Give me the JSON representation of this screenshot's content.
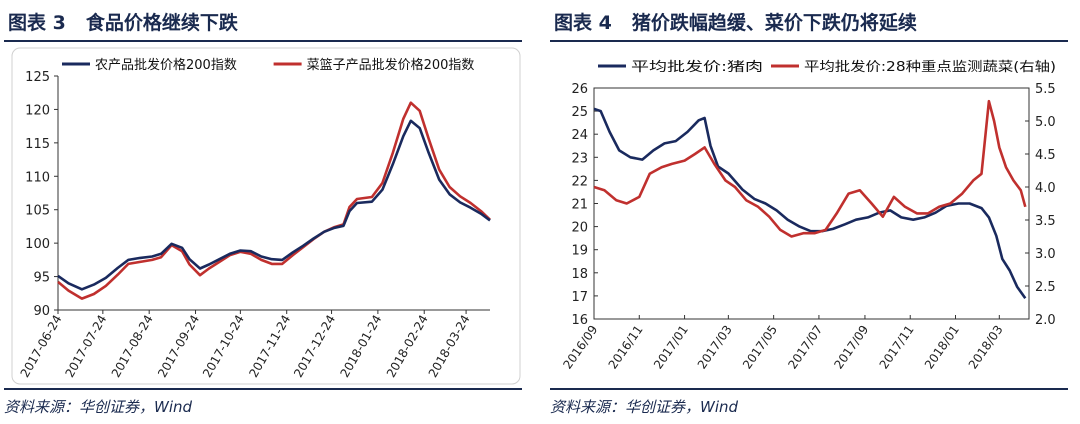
{
  "left": {
    "title_num": "图表 3",
    "title_text": "食品价格继续下跌",
    "source": "资料来源：华创证券，Wind",
    "chart_data": {
      "type": "line",
      "xlabel": "",
      "ylabel": "",
      "ylim": [
        90,
        125
      ],
      "yticks": [
        90,
        95,
        100,
        105,
        110,
        115,
        120,
        125
      ],
      "xlim": [
        "2017-06-24",
        "2018-04-09"
      ],
      "xticks": [
        "2017-06-24",
        "2017-07-24",
        "2017-08-24",
        "2017-09-24",
        "2017-10-24",
        "2017-11-24",
        "2017-12-24",
        "2018-01-24",
        "2018-02-24",
        "2018-03-24"
      ],
      "legend_position": "top",
      "series": [
        {
          "name": "农产品批发价格200指数",
          "color": "#1a2a5e",
          "points": [
            [
              "2017-06-24",
              95.1
            ],
            [
              "2017-07-01",
              94.0
            ],
            [
              "2017-07-10",
              93.1
            ],
            [
              "2017-07-18",
              93.8
            ],
            [
              "2017-07-26",
              94.8
            ],
            [
              "2017-08-03",
              96.3
            ],
            [
              "2017-08-10",
              97.5
            ],
            [
              "2017-08-18",
              97.8
            ],
            [
              "2017-08-26",
              98.0
            ],
            [
              "2017-09-01",
              98.4
            ],
            [
              "2017-09-08",
              99.9
            ],
            [
              "2017-09-15",
              99.3
            ],
            [
              "2017-09-20",
              97.6
            ],
            [
              "2017-09-27",
              96.2
            ],
            [
              "2017-10-03",
              96.8
            ],
            [
              "2017-10-10",
              97.6
            ],
            [
              "2017-10-17",
              98.4
            ],
            [
              "2017-10-24",
              98.9
            ],
            [
              "2017-10-31",
              98.8
            ],
            [
              "2017-11-07",
              98.0
            ],
            [
              "2017-11-14",
              97.6
            ],
            [
              "2017-11-21",
              97.5
            ],
            [
              "2017-11-28",
              98.6
            ],
            [
              "2017-12-05",
              99.6
            ],
            [
              "2017-12-12",
              100.7
            ],
            [
              "2017-12-19",
              101.7
            ],
            [
              "2017-12-26",
              102.3
            ],
            [
              "2018-01-01",
              102.6
            ],
            [
              "2018-01-05",
              104.8
            ],
            [
              "2018-01-10",
              106.0
            ],
            [
              "2018-01-20",
              106.2
            ],
            [
              "2018-01-27",
              108.0
            ],
            [
              "2018-02-03",
              111.8
            ],
            [
              "2018-02-10",
              116.0
            ],
            [
              "2018-02-15",
              118.3
            ],
            [
              "2018-02-21",
              117.2
            ],
            [
              "2018-02-27",
              113.5
            ],
            [
              "2018-03-06",
              109.5
            ],
            [
              "2018-03-13",
              107.3
            ],
            [
              "2018-03-20",
              106.1
            ],
            [
              "2018-03-27",
              105.3
            ],
            [
              "2018-04-03",
              104.4
            ],
            [
              "2018-04-09",
              103.4
            ]
          ]
        },
        {
          "name": "菜篮子产品批发价格200指数",
          "color": "#c0302e",
          "points": [
            [
              "2017-06-24",
              94.2
            ],
            [
              "2017-07-01",
              92.9
            ],
            [
              "2017-07-10",
              91.7
            ],
            [
              "2017-07-18",
              92.4
            ],
            [
              "2017-07-26",
              93.6
            ],
            [
              "2017-08-03",
              95.3
            ],
            [
              "2017-08-10",
              96.9
            ],
            [
              "2017-08-18",
              97.2
            ],
            [
              "2017-08-26",
              97.5
            ],
            [
              "2017-09-01",
              97.9
            ],
            [
              "2017-09-08",
              99.7
            ],
            [
              "2017-09-15",
              98.8
            ],
            [
              "2017-09-20",
              96.8
            ],
            [
              "2017-09-27",
              95.2
            ],
            [
              "2017-10-03",
              96.2
            ],
            [
              "2017-10-10",
              97.2
            ],
            [
              "2017-10-17",
              98.2
            ],
            [
              "2017-10-24",
              98.7
            ],
            [
              "2017-10-31",
              98.4
            ],
            [
              "2017-11-07",
              97.5
            ],
            [
              "2017-11-14",
              96.9
            ],
            [
              "2017-11-21",
              96.9
            ],
            [
              "2017-11-28",
              98.2
            ],
            [
              "2017-12-05",
              99.4
            ],
            [
              "2017-12-12",
              100.6
            ],
            [
              "2017-12-19",
              101.7
            ],
            [
              "2017-12-26",
              102.4
            ],
            [
              "2018-01-01",
              102.8
            ],
            [
              "2018-01-05",
              105.4
            ],
            [
              "2018-01-10",
              106.6
            ],
            [
              "2018-01-20",
              106.9
            ],
            [
              "2018-01-27",
              109.0
            ],
            [
              "2018-02-03",
              113.5
            ],
            [
              "2018-02-10",
              118.6
            ],
            [
              "2018-02-15",
              121.0
            ],
            [
              "2018-02-21",
              119.8
            ],
            [
              "2018-02-27",
              115.6
            ],
            [
              "2018-03-06",
              111.0
            ],
            [
              "2018-03-13",
              108.4
            ],
            [
              "2018-03-20",
              107.0
            ],
            [
              "2018-03-27",
              106.0
            ],
            [
              "2018-04-03",
              104.8
            ],
            [
              "2018-04-09",
              103.5
            ]
          ]
        }
      ]
    }
  },
  "right": {
    "title_num": "图表 4",
    "title_text": "猪价跌幅趋缓、菜价下跌仍将延续",
    "source": "资料来源：华创证券，Wind",
    "chart_data": {
      "type": "line",
      "xlabel": "",
      "ylabel": "",
      "ylim": [
        16,
        26
      ],
      "yticks": [
        16,
        17,
        18,
        19,
        20,
        21,
        22,
        23,
        24,
        25,
        26
      ],
      "y2lim": [
        2.0,
        5.5
      ],
      "y2ticks": [
        "2.0",
        "2.5",
        "3.0",
        "3.5",
        "4.0",
        "4.5",
        "5.0",
        "5.5"
      ],
      "y2label": "右轴",
      "xlim": [
        "2016-09-01",
        "2018-04-10"
      ],
      "xticks": [
        "2016/09",
        "2016/11",
        "2017/01",
        "2017/03",
        "2017/05",
        "2017/07",
        "2017/09",
        "2017/11",
        "2018/01",
        "2018/03"
      ],
      "legend_position": "top",
      "series": [
        {
          "name": "平均批发价:猪肉",
          "axis": "left",
          "color": "#1a2a5e",
          "points": [
            [
              "2016-09-01",
              25.1
            ],
            [
              "2016-09-10",
              25.0
            ],
            [
              "2016-09-22",
              24.1
            ],
            [
              "2016-10-05",
              23.3
            ],
            [
              "2016-10-20",
              23.0
            ],
            [
              "2016-11-05",
              22.9
            ],
            [
              "2016-11-20",
              23.3
            ],
            [
              "2016-12-05",
              23.6
            ],
            [
              "2016-12-20",
              23.7
            ],
            [
              "2017-01-05",
              24.1
            ],
            [
              "2017-01-20",
              24.6
            ],
            [
              "2017-01-28",
              24.7
            ],
            [
              "2017-02-05",
              23.5
            ],
            [
              "2017-02-15",
              22.6
            ],
            [
              "2017-03-01",
              22.3
            ],
            [
              "2017-03-20",
              21.6
            ],
            [
              "2017-04-05",
              21.2
            ],
            [
              "2017-04-20",
              21.0
            ],
            [
              "2017-05-05",
              20.7
            ],
            [
              "2017-05-20",
              20.3
            ],
            [
              "2017-06-05",
              20.0
            ],
            [
              "2017-06-20",
              19.8
            ],
            [
              "2017-07-05",
              19.8
            ],
            [
              "2017-07-20",
              19.9
            ],
            [
              "2017-08-05",
              20.1
            ],
            [
              "2017-08-20",
              20.3
            ],
            [
              "2017-09-05",
              20.4
            ],
            [
              "2017-09-20",
              20.6
            ],
            [
              "2017-10-05",
              20.7
            ],
            [
              "2017-10-20",
              20.4
            ],
            [
              "2017-11-05",
              20.3
            ],
            [
              "2017-11-20",
              20.4
            ],
            [
              "2017-12-05",
              20.6
            ],
            [
              "2017-12-20",
              20.9
            ],
            [
              "2018-01-05",
              21.0
            ],
            [
              "2018-01-20",
              21.0
            ],
            [
              "2018-02-05",
              20.8
            ],
            [
              "2018-02-15",
              20.4
            ],
            [
              "2018-02-25",
              19.6
            ],
            [
              "2018-03-05",
              18.6
            ],
            [
              "2018-03-15",
              18.1
            ],
            [
              "2018-03-25",
              17.4
            ],
            [
              "2018-04-05",
              16.9
            ]
          ]
        },
        {
          "name": "平均批发价:28种重点监测蔬菜(右轴)",
          "axis": "right",
          "color": "#c0302e",
          "points": [
            [
              "2016-09-01",
              4.0
            ],
            [
              "2016-09-15",
              3.95
            ],
            [
              "2016-10-01",
              3.8
            ],
            [
              "2016-10-15",
              3.75
            ],
            [
              "2016-11-01",
              3.85
            ],
            [
              "2016-11-15",
              4.2
            ],
            [
              "2016-12-01",
              4.3
            ],
            [
              "2016-12-15",
              4.35
            ],
            [
              "2017-01-01",
              4.4
            ],
            [
              "2017-01-15",
              4.5
            ],
            [
              "2017-01-28",
              4.6
            ],
            [
              "2017-02-10",
              4.35
            ],
            [
              "2017-02-25",
              4.1
            ],
            [
              "2017-03-10",
              4.0
            ],
            [
              "2017-03-25",
              3.8
            ],
            [
              "2017-04-10",
              3.7
            ],
            [
              "2017-04-25",
              3.55
            ],
            [
              "2017-05-10",
              3.35
            ],
            [
              "2017-05-25",
              3.25
            ],
            [
              "2017-06-10",
              3.3
            ],
            [
              "2017-06-25",
              3.3
            ],
            [
              "2017-07-10",
              3.35
            ],
            [
              "2017-07-25",
              3.6
            ],
            [
              "2017-08-10",
              3.9
            ],
            [
              "2017-08-25",
              3.95
            ],
            [
              "2017-09-10",
              3.75
            ],
            [
              "2017-09-25",
              3.55
            ],
            [
              "2017-10-10",
              3.85
            ],
            [
              "2017-10-25",
              3.7
            ],
            [
              "2017-11-10",
              3.6
            ],
            [
              "2017-11-25",
              3.6
            ],
            [
              "2017-12-10",
              3.7
            ],
            [
              "2017-12-25",
              3.75
            ],
            [
              "2018-01-10",
              3.9
            ],
            [
              "2018-01-25",
              4.1
            ],
            [
              "2018-02-05",
              4.2
            ],
            [
              "2018-02-15",
              5.3
            ],
            [
              "2018-02-22",
              5.0
            ],
            [
              "2018-03-01",
              4.6
            ],
            [
              "2018-03-10",
              4.3
            ],
            [
              "2018-03-20",
              4.1
            ],
            [
              "2018-03-30",
              3.95
            ],
            [
              "2018-04-05",
              3.7
            ]
          ]
        }
      ]
    }
  }
}
